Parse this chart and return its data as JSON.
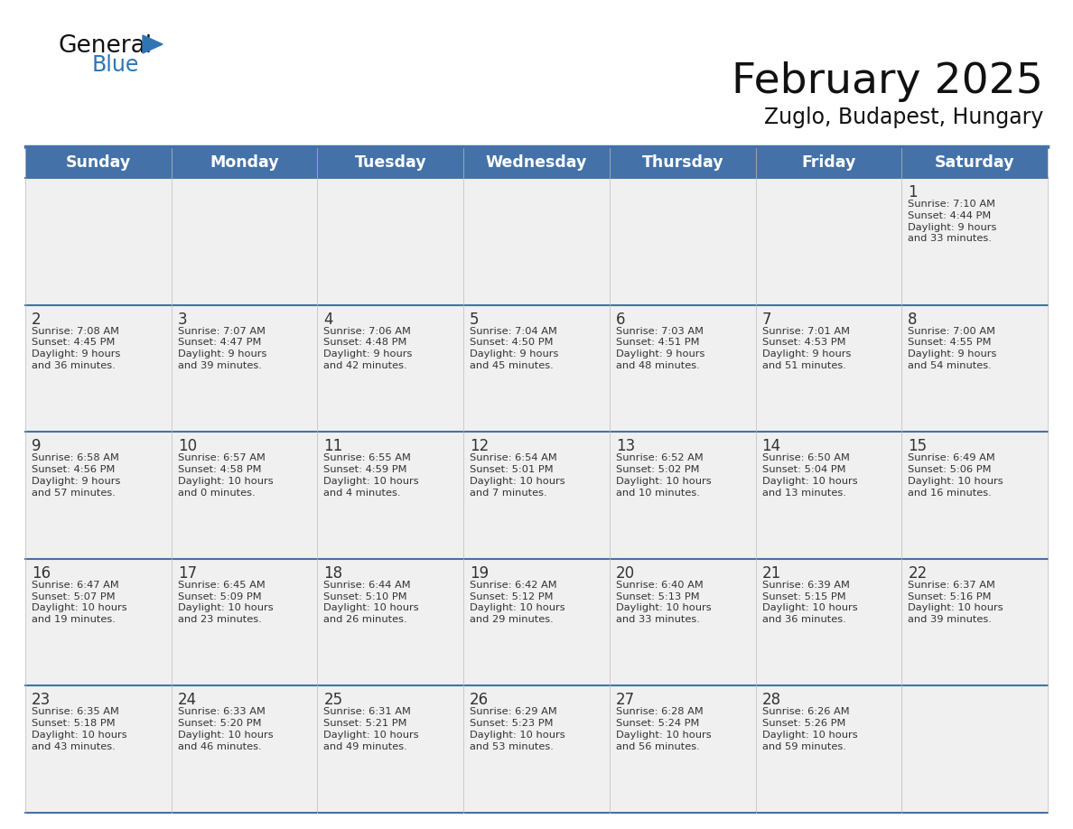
{
  "title": "February 2025",
  "subtitle": "Zuglo, Budapest, Hungary",
  "header_bg": "#4472A8",
  "header_text_color": "#FFFFFF",
  "weekdays": [
    "Sunday",
    "Monday",
    "Tuesday",
    "Wednesday",
    "Thursday",
    "Friday",
    "Saturday"
  ],
  "cell_bg": "#F0F0F0",
  "grid_line_color": "#4472A8",
  "day_number_color": "#333333",
  "day_text_color": "#333333",
  "days": [
    {
      "day": 1,
      "col": 6,
      "row": 0,
      "sunrise": "7:10 AM",
      "sunset": "4:44 PM",
      "daylight": "9 hours\nand 33 minutes."
    },
    {
      "day": 2,
      "col": 0,
      "row": 1,
      "sunrise": "7:08 AM",
      "sunset": "4:45 PM",
      "daylight": "9 hours\nand 36 minutes."
    },
    {
      "day": 3,
      "col": 1,
      "row": 1,
      "sunrise": "7:07 AM",
      "sunset": "4:47 PM",
      "daylight": "9 hours\nand 39 minutes."
    },
    {
      "day": 4,
      "col": 2,
      "row": 1,
      "sunrise": "7:06 AM",
      "sunset": "4:48 PM",
      "daylight": "9 hours\nand 42 minutes."
    },
    {
      "day": 5,
      "col": 3,
      "row": 1,
      "sunrise": "7:04 AM",
      "sunset": "4:50 PM",
      "daylight": "9 hours\nand 45 minutes."
    },
    {
      "day": 6,
      "col": 4,
      "row": 1,
      "sunrise": "7:03 AM",
      "sunset": "4:51 PM",
      "daylight": "9 hours\nand 48 minutes."
    },
    {
      "day": 7,
      "col": 5,
      "row": 1,
      "sunrise": "7:01 AM",
      "sunset": "4:53 PM",
      "daylight": "9 hours\nand 51 minutes."
    },
    {
      "day": 8,
      "col": 6,
      "row": 1,
      "sunrise": "7:00 AM",
      "sunset": "4:55 PM",
      "daylight": "9 hours\nand 54 minutes."
    },
    {
      "day": 9,
      "col": 0,
      "row": 2,
      "sunrise": "6:58 AM",
      "sunset": "4:56 PM",
      "daylight": "9 hours\nand 57 minutes."
    },
    {
      "day": 10,
      "col": 1,
      "row": 2,
      "sunrise": "6:57 AM",
      "sunset": "4:58 PM",
      "daylight": "10 hours\nand 0 minutes."
    },
    {
      "day": 11,
      "col": 2,
      "row": 2,
      "sunrise": "6:55 AM",
      "sunset": "4:59 PM",
      "daylight": "10 hours\nand 4 minutes."
    },
    {
      "day": 12,
      "col": 3,
      "row": 2,
      "sunrise": "6:54 AM",
      "sunset": "5:01 PM",
      "daylight": "10 hours\nand 7 minutes."
    },
    {
      "day": 13,
      "col": 4,
      "row": 2,
      "sunrise": "6:52 AM",
      "sunset": "5:02 PM",
      "daylight": "10 hours\nand 10 minutes."
    },
    {
      "day": 14,
      "col": 5,
      "row": 2,
      "sunrise": "6:50 AM",
      "sunset": "5:04 PM",
      "daylight": "10 hours\nand 13 minutes."
    },
    {
      "day": 15,
      "col": 6,
      "row": 2,
      "sunrise": "6:49 AM",
      "sunset": "5:06 PM",
      "daylight": "10 hours\nand 16 minutes."
    },
    {
      "day": 16,
      "col": 0,
      "row": 3,
      "sunrise": "6:47 AM",
      "sunset": "5:07 PM",
      "daylight": "10 hours\nand 19 minutes."
    },
    {
      "day": 17,
      "col": 1,
      "row": 3,
      "sunrise": "6:45 AM",
      "sunset": "5:09 PM",
      "daylight": "10 hours\nand 23 minutes."
    },
    {
      "day": 18,
      "col": 2,
      "row": 3,
      "sunrise": "6:44 AM",
      "sunset": "5:10 PM",
      "daylight": "10 hours\nand 26 minutes."
    },
    {
      "day": 19,
      "col": 3,
      "row": 3,
      "sunrise": "6:42 AM",
      "sunset": "5:12 PM",
      "daylight": "10 hours\nand 29 minutes."
    },
    {
      "day": 20,
      "col": 4,
      "row": 3,
      "sunrise": "6:40 AM",
      "sunset": "5:13 PM",
      "daylight": "10 hours\nand 33 minutes."
    },
    {
      "day": 21,
      "col": 5,
      "row": 3,
      "sunrise": "6:39 AM",
      "sunset": "5:15 PM",
      "daylight": "10 hours\nand 36 minutes."
    },
    {
      "day": 22,
      "col": 6,
      "row": 3,
      "sunrise": "6:37 AM",
      "sunset": "5:16 PM",
      "daylight": "10 hours\nand 39 minutes."
    },
    {
      "day": 23,
      "col": 0,
      "row": 4,
      "sunrise": "6:35 AM",
      "sunset": "5:18 PM",
      "daylight": "10 hours\nand 43 minutes."
    },
    {
      "day": 24,
      "col": 1,
      "row": 4,
      "sunrise": "6:33 AM",
      "sunset": "5:20 PM",
      "daylight": "10 hours\nand 46 minutes."
    },
    {
      "day": 25,
      "col": 2,
      "row": 4,
      "sunrise": "6:31 AM",
      "sunset": "5:21 PM",
      "daylight": "10 hours\nand 49 minutes."
    },
    {
      "day": 26,
      "col": 3,
      "row": 4,
      "sunrise": "6:29 AM",
      "sunset": "5:23 PM",
      "daylight": "10 hours\nand 53 minutes."
    },
    {
      "day": 27,
      "col": 4,
      "row": 4,
      "sunrise": "6:28 AM",
      "sunset": "5:24 PM",
      "daylight": "10 hours\nand 56 minutes."
    },
    {
      "day": 28,
      "col": 5,
      "row": 4,
      "sunrise": "6:26 AM",
      "sunset": "5:26 PM",
      "daylight": "10 hours\nand 59 minutes."
    }
  ]
}
